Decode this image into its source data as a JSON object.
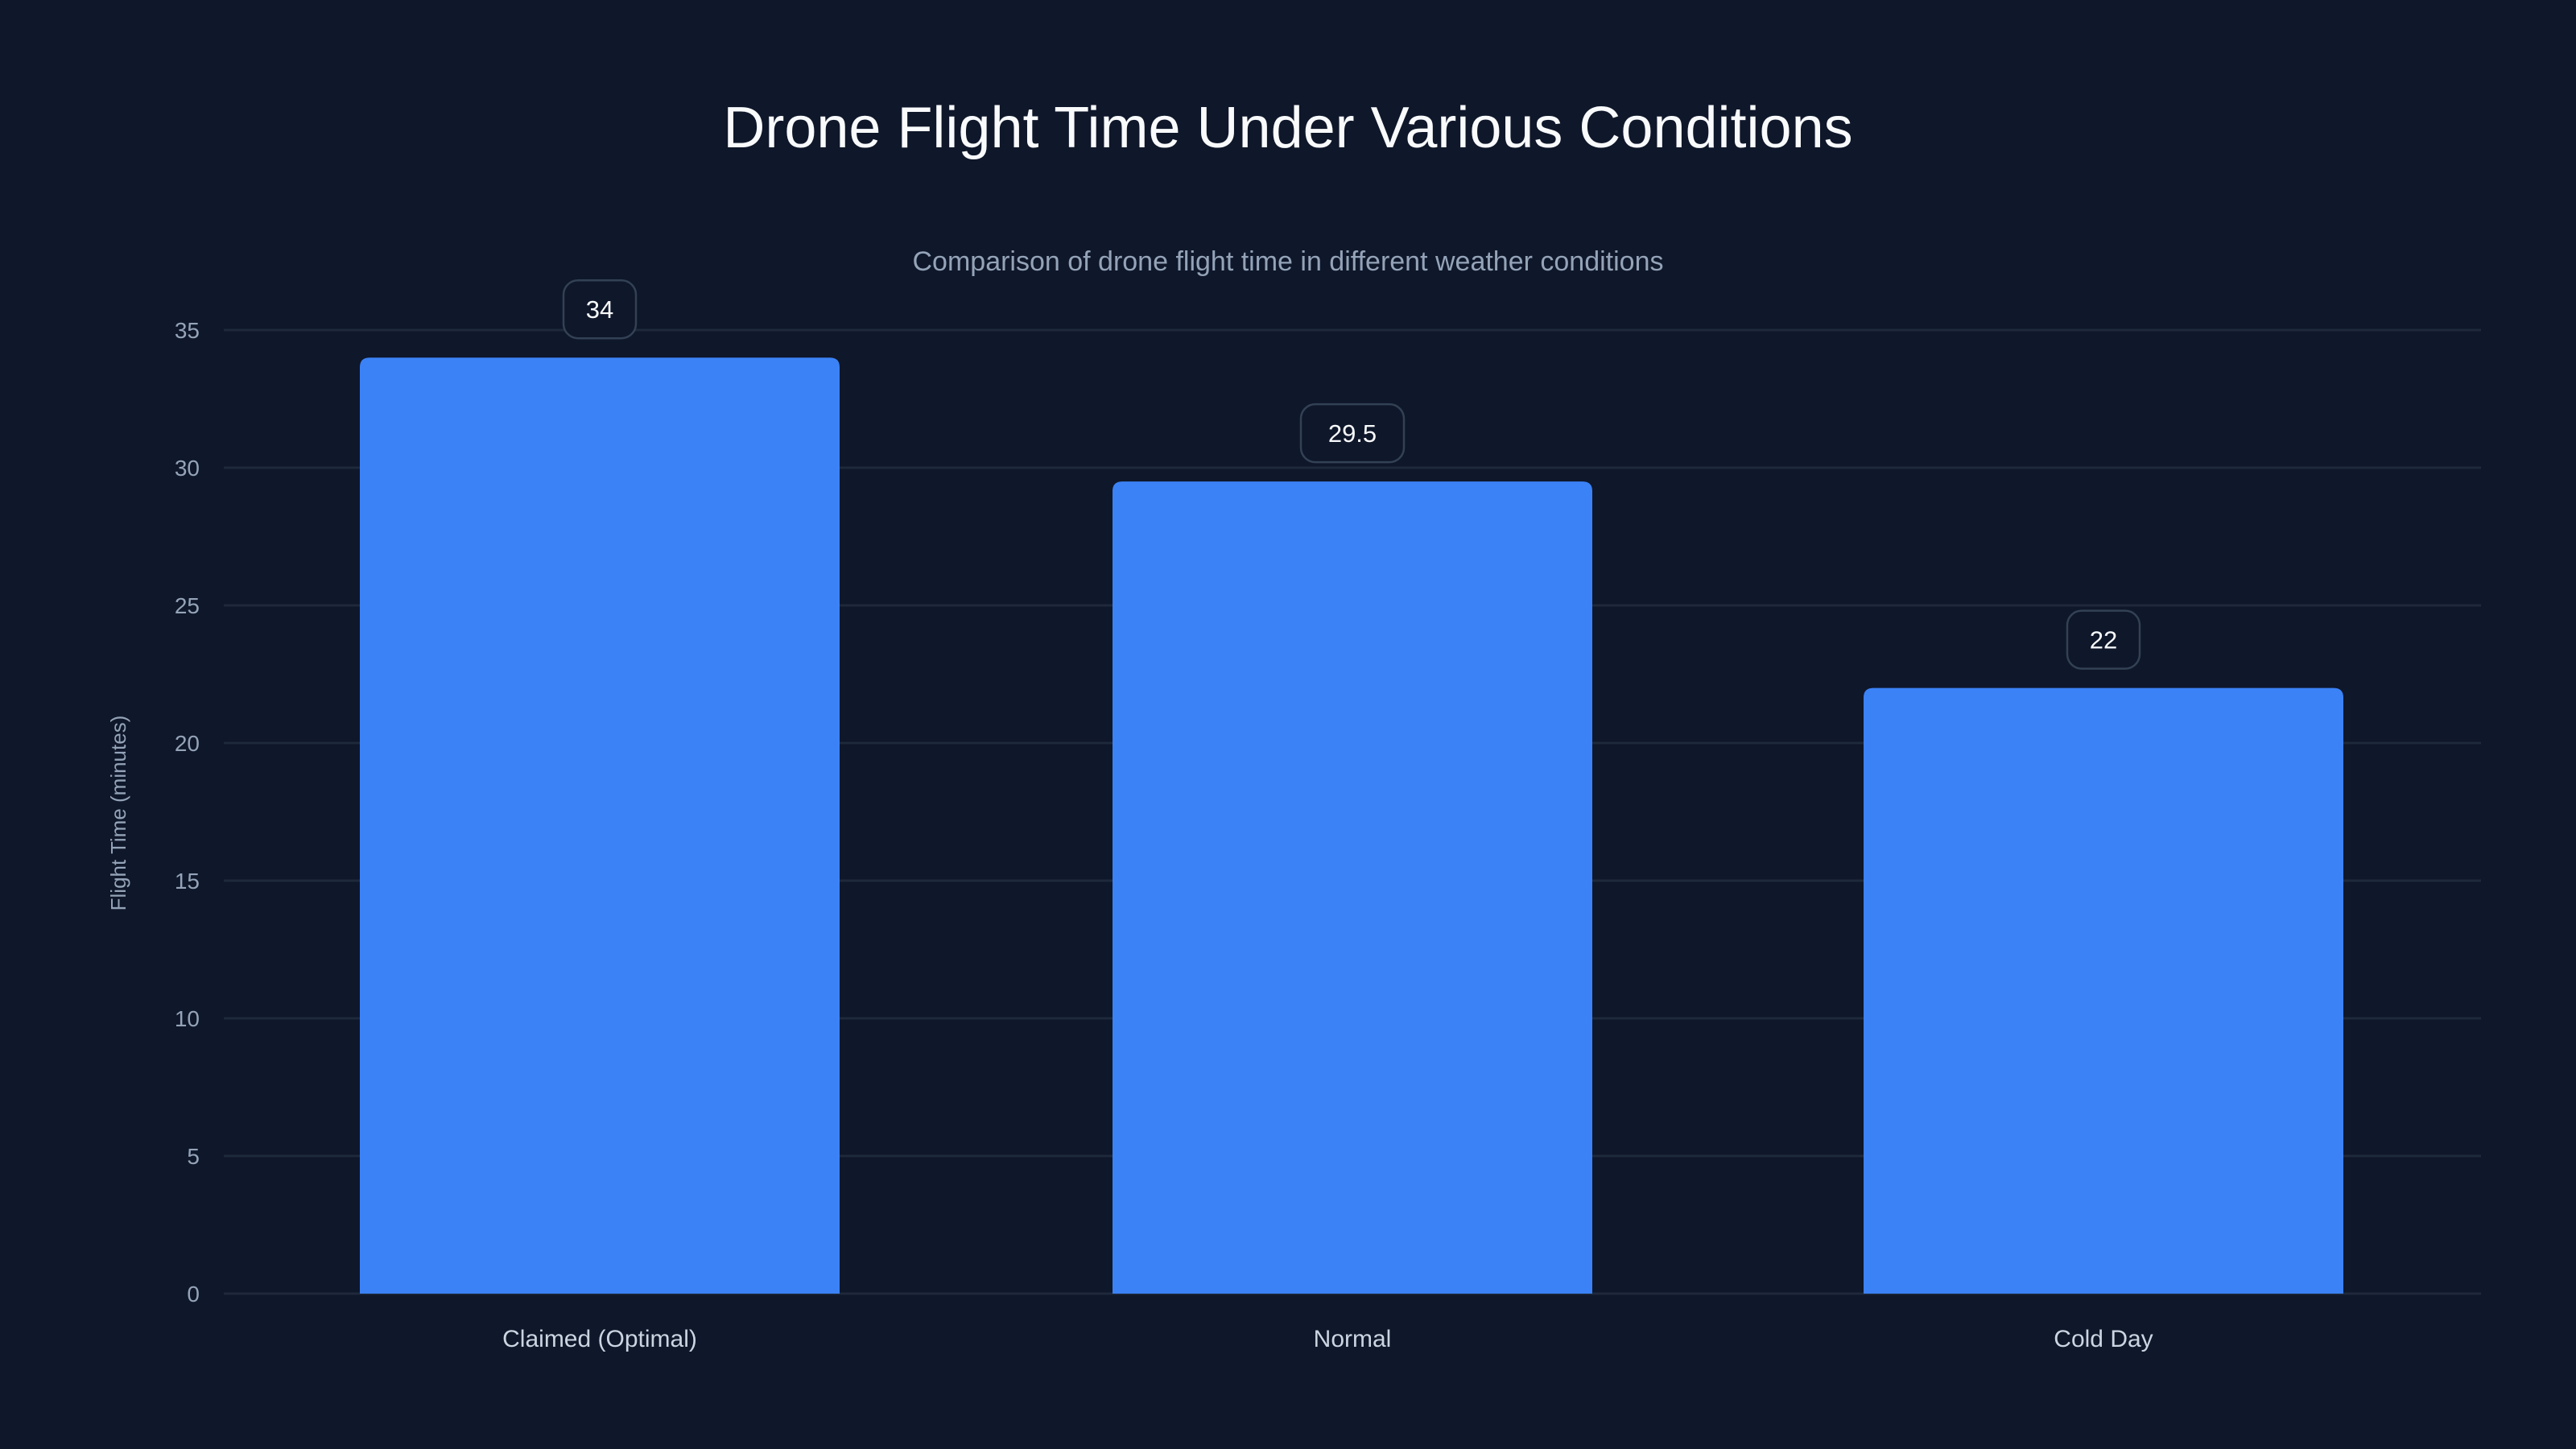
{
  "chart_data": {
    "type": "bar",
    "title": "Drone Flight Time Under Various Conditions",
    "subtitle": "Comparison of drone flight time in different weather conditions",
    "xlabel": "",
    "ylabel": "Flight Time (minutes)",
    "categories": [
      "Claimed (Optimal)",
      "Normal",
      "Cold Day"
    ],
    "values": [
      34,
      29.5,
      22
    ],
    "data_labels": [
      "34",
      "29.5",
      "22"
    ],
    "ylim": [
      0,
      35
    ],
    "yticks": [
      0,
      5,
      10,
      15,
      20,
      25,
      30,
      35
    ],
    "grid": true,
    "colors": {
      "background": "#0f172a",
      "bar": "#3b82f6",
      "grid": "#1e293b",
      "tick_text": "#94a3b8",
      "category_text": "#cbd5e1"
    }
  }
}
